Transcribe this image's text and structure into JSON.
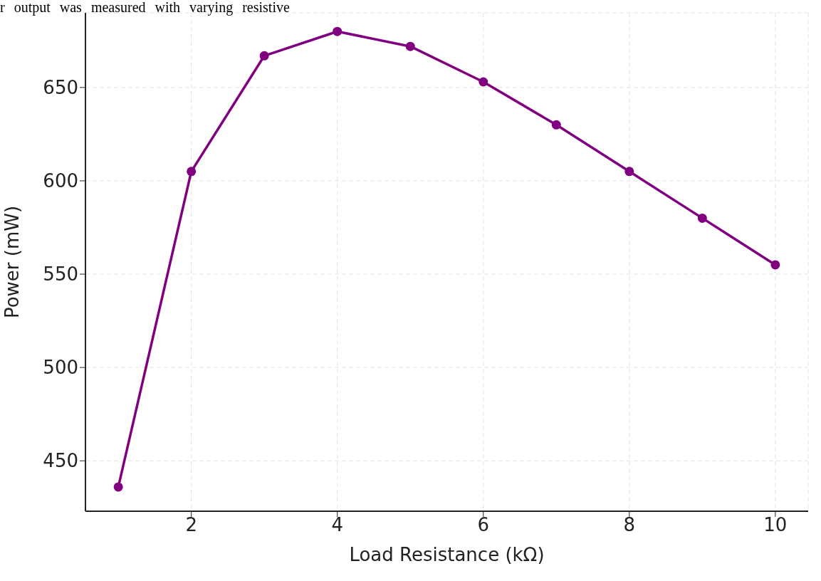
{
  "chart_data": {
    "type": "line",
    "xlabel": "Load Resistance (kΩ)",
    "ylabel": "Power (mW)",
    "annotations": [
      "r output was measured with varying resistive"
    ],
    "x": [
      1,
      2,
      3,
      4,
      5,
      6,
      7,
      8,
      9,
      10
    ],
    "series": [
      {
        "color": "#800080",
        "values": [
          436,
          605,
          667,
          680,
          672,
          653,
          630,
          605,
          580,
          555
        ]
      }
    ],
    "xlim": [
      0.55,
      10.45
    ],
    "xticks": [
      2,
      4,
      6,
      8,
      10
    ],
    "ylim": [
      423,
      690
    ],
    "yticks": [
      450,
      500,
      550,
      600,
      650
    ],
    "grid": true,
    "marker": "circle",
    "line_style": "solid"
  }
}
